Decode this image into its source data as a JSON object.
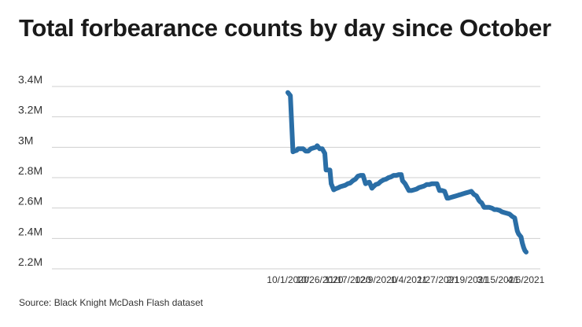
{
  "chart_data": {
    "type": "line",
    "title": "Total forbearance counts by day since October",
    "source": "Source: Black Knight McDash Flash dataset",
    "xlabel": "",
    "ylabel": "",
    "ylim": [
      2.2,
      3.4
    ],
    "yticks": [
      {
        "value": 3.4,
        "label": "3.4M"
      },
      {
        "value": 3.2,
        "label": "3.2M"
      },
      {
        "value": 3.0,
        "label": "3M"
      },
      {
        "value": 2.8,
        "label": "2.8M"
      },
      {
        "value": 2.6,
        "label": "2.6M"
      },
      {
        "value": 2.4,
        "label": "2.4M"
      },
      {
        "value": 2.2,
        "label": "2.2M"
      }
    ],
    "xrange": [
      0,
      187
    ],
    "xticks": [
      {
        "day": 0,
        "label": "10/1/2020"
      },
      {
        "day": 25,
        "label": "10/26/2020"
      },
      {
        "day": 47,
        "label": "11/17/2020"
      },
      {
        "day": 69,
        "label": "12/9/2020"
      },
      {
        "day": 95,
        "label": "1/4/2021"
      },
      {
        "day": 118,
        "label": "1/27/2021"
      },
      {
        "day": 141,
        "label": "2/19/2021"
      },
      {
        "day": 165,
        "label": "3/15/2021"
      },
      {
        "day": 187,
        "label": "4/6/2021"
      }
    ],
    "grid": true,
    "series": [
      {
        "name": "Total forbearance counts",
        "color": "#2a6ea6",
        "x": [
          0,
          2,
          4,
          5,
          7,
          8,
          10,
          12,
          14,
          16,
          18,
          20,
          22,
          23,
          25,
          27,
          29,
          30,
          31,
          33,
          34,
          36,
          37,
          40,
          41,
          43,
          45,
          47,
          49,
          51,
          53,
          55,
          57,
          59,
          61,
          62,
          64,
          66,
          67,
          69,
          71,
          73,
          75,
          77,
          79,
          81,
          83,
          85,
          87,
          89,
          90,
          92,
          95,
          97,
          99,
          101,
          103,
          105,
          107,
          109,
          111,
          113,
          115,
          117,
          119,
          121,
          123,
          125,
          126,
          128,
          130,
          132,
          134,
          136,
          138,
          140,
          142,
          144,
          146,
          148,
          150,
          151,
          152,
          154,
          156,
          158,
          160,
          162,
          164,
          166,
          168,
          170,
          172,
          174,
          176,
          178,
          180,
          181,
          182,
          183,
          184,
          185,
          186,
          187
        ],
        "values": [
          3.36,
          3.34,
          2.97,
          2.975,
          2.98,
          2.99,
          2.99,
          2.99,
          2.975,
          2.975,
          2.99,
          2.995,
          3.0,
          3.01,
          2.99,
          2.99,
          2.96,
          2.85,
          2.85,
          2.85,
          2.76,
          2.72,
          2.725,
          2.735,
          2.74,
          2.745,
          2.75,
          2.76,
          2.765,
          2.78,
          2.79,
          2.81,
          2.815,
          2.815,
          2.76,
          2.765,
          2.77,
          2.73,
          2.74,
          2.755,
          2.76,
          2.775,
          2.785,
          2.79,
          2.8,
          2.805,
          2.815,
          2.815,
          2.82,
          2.82,
          2.78,
          2.76,
          2.715,
          2.715,
          2.72,
          2.725,
          2.735,
          2.74,
          2.745,
          2.755,
          2.755,
          2.76,
          2.76,
          2.76,
          2.715,
          2.715,
          2.71,
          2.665,
          2.665,
          2.67,
          2.675,
          2.68,
          2.685,
          2.69,
          2.695,
          2.7,
          2.705,
          2.71,
          2.69,
          2.68,
          2.65,
          2.64,
          2.635,
          2.605,
          2.605,
          2.605,
          2.6,
          2.59,
          2.59,
          2.585,
          2.575,
          2.57,
          2.565,
          2.56,
          2.545,
          2.535,
          2.45,
          2.43,
          2.42,
          2.41,
          2.37,
          2.34,
          2.32,
          2.31
        ]
      }
    ]
  }
}
